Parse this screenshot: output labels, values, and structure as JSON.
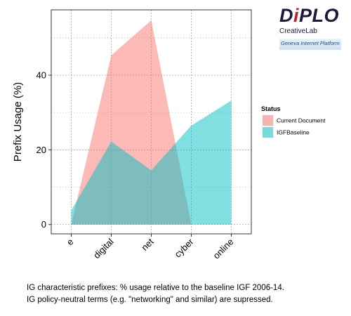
{
  "logo": {
    "brand_prefix": "D",
    "brand_accent": "i",
    "brand_suffix": "PLO",
    "subtitle": "CreativeLab",
    "banner": "Geneva Internet Platform"
  },
  "caption": {
    "line1": "IG characteristic prefixes: % usage relative to the baseline IGF 2006-14.",
    "line2": "IG policy-neutral terms (e.g. \"networking\" and similar) are supressed."
  },
  "chart_data": {
    "type": "area",
    "categories": [
      "e",
      "digital",
      "net",
      "cyber",
      "online"
    ],
    "ylabel": "Prefix Usage (%)",
    "ylim": [
      -2.5,
      57.5
    ],
    "yticks": [
      0,
      20,
      40
    ],
    "grid": true,
    "legend": {
      "title": "Status",
      "position": "right"
    },
    "series": [
      {
        "name": "Current Document",
        "values": [
          0,
          45.3,
          54.7,
          0,
          null
        ],
        "color": "#F8766D"
      },
      {
        "name": "IGFBaseline",
        "values": [
          3.8,
          22.2,
          14.5,
          26.5,
          33.2
        ],
        "color": "#00BFC4"
      }
    ]
  }
}
